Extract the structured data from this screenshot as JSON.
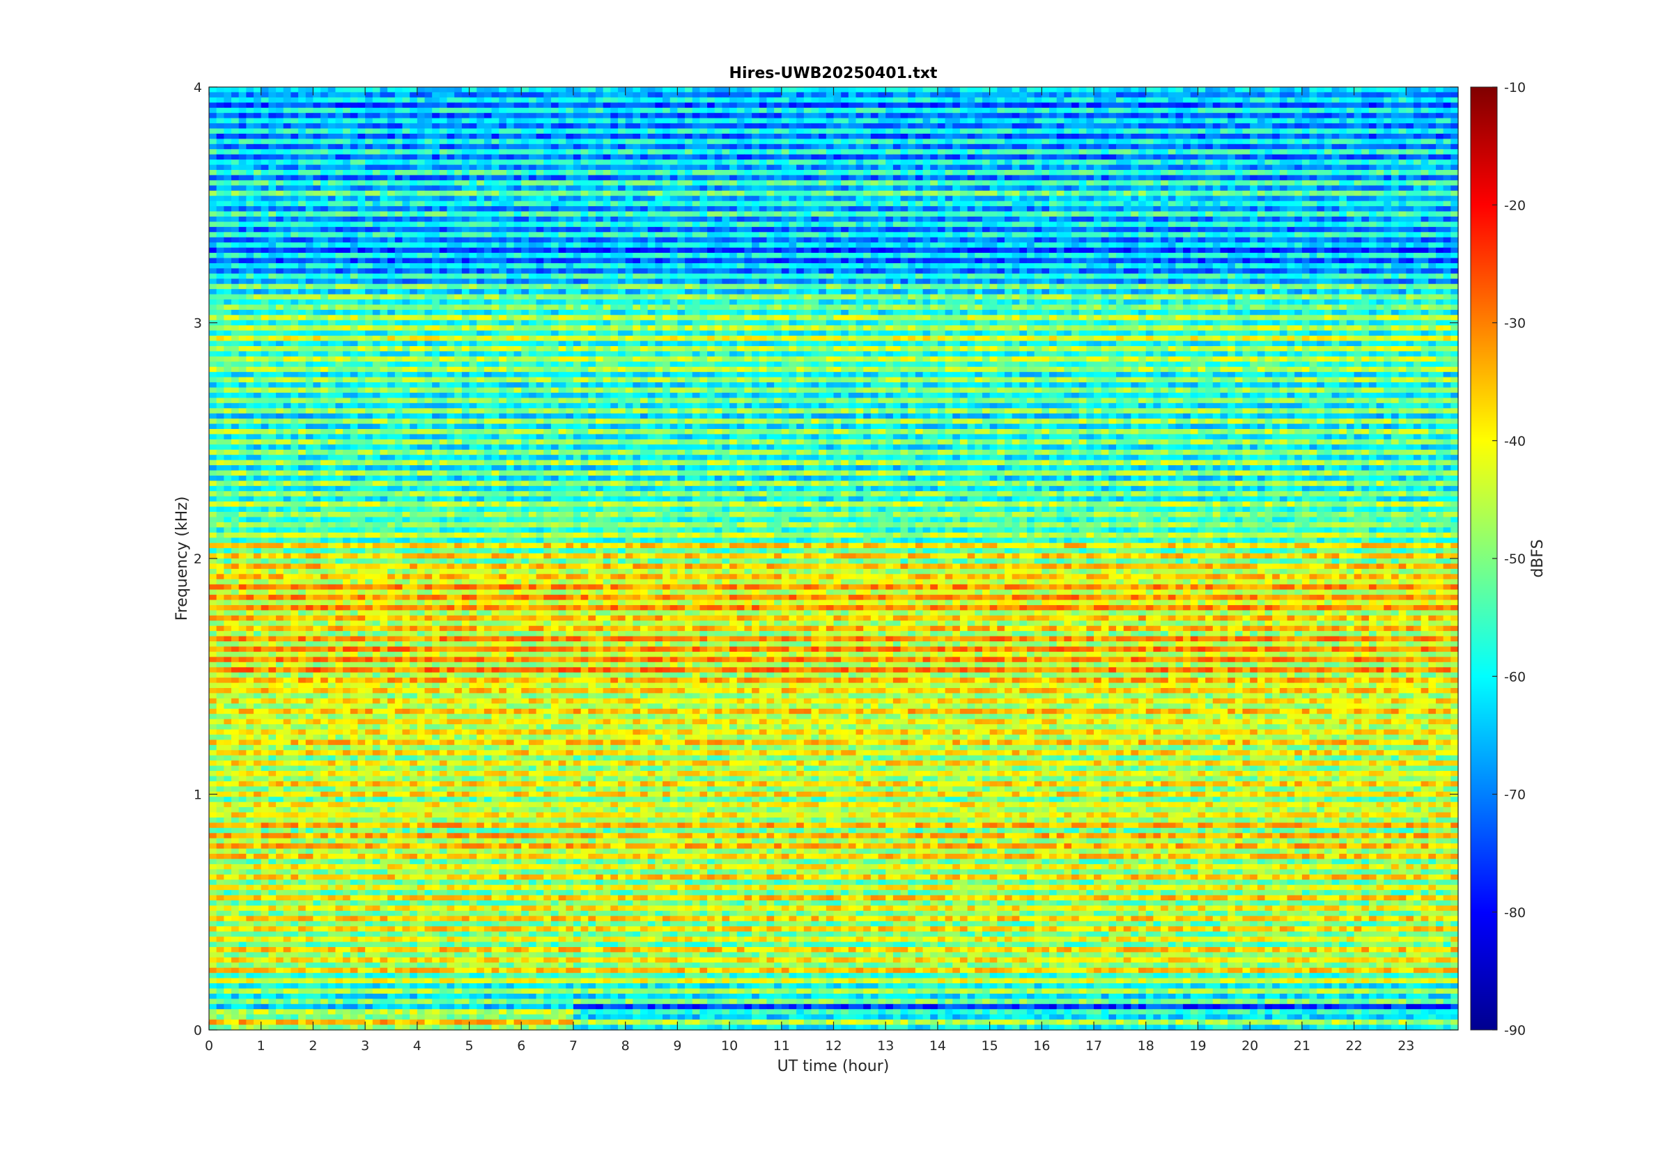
{
  "chart_data": {
    "type": "heatmap",
    "title": "Hires-UWB20250401.txt",
    "xlabel": "UT time (hour)",
    "ylabel": "Frequency (kHz)",
    "xlim": [
      0,
      24
    ],
    "ylim": [
      0,
      4
    ],
    "x_ticks": [
      "0",
      "1",
      "2",
      "3",
      "4",
      "5",
      "6",
      "7",
      "8",
      "9",
      "10",
      "11",
      "12",
      "13",
      "14",
      "15",
      "16",
      "17",
      "18",
      "19",
      "20",
      "21",
      "22",
      "23"
    ],
    "y_ticks": [
      "0",
      "1",
      "2",
      "3",
      "4"
    ],
    "colorbar": {
      "label": "dBFS",
      "range": [
        -90,
        -10
      ],
      "ticks": [
        "-90",
        "-80",
        "-70",
        "-60",
        "-50",
        "-40",
        "-30",
        "-20",
        "-10"
      ],
      "colormap": "jet"
    },
    "frequency_profile_dbfs": [
      {
        "f": 0.05,
        "v": -40
      },
      {
        "f": 0.1,
        "v": -60
      },
      {
        "f": 0.25,
        "v": -45
      },
      {
        "f": 0.35,
        "v": -45
      },
      {
        "f": 0.45,
        "v": -44
      },
      {
        "f": 0.65,
        "v": -45
      },
      {
        "f": 0.85,
        "v": -42
      },
      {
        "f": 1.05,
        "v": -44
      },
      {
        "f": 1.15,
        "v": -42
      },
      {
        "f": 1.35,
        "v": -42
      },
      {
        "f": 1.55,
        "v": -38
      },
      {
        "f": 1.75,
        "v": -38
      },
      {
        "f": 1.85,
        "v": -40
      },
      {
        "f": 1.95,
        "v": -40
      },
      {
        "f": 2.15,
        "v": -52
      },
      {
        "f": 2.4,
        "v": -55
      },
      {
        "f": 2.65,
        "v": -55
      },
      {
        "f": 2.95,
        "v": -50
      },
      {
        "f": 3.05,
        "v": -52
      },
      {
        "f": 3.3,
        "v": -68
      },
      {
        "f": 3.55,
        "v": -60
      },
      {
        "f": 3.8,
        "v": -66
      },
      {
        "f": 3.95,
        "v": -65
      }
    ]
  }
}
